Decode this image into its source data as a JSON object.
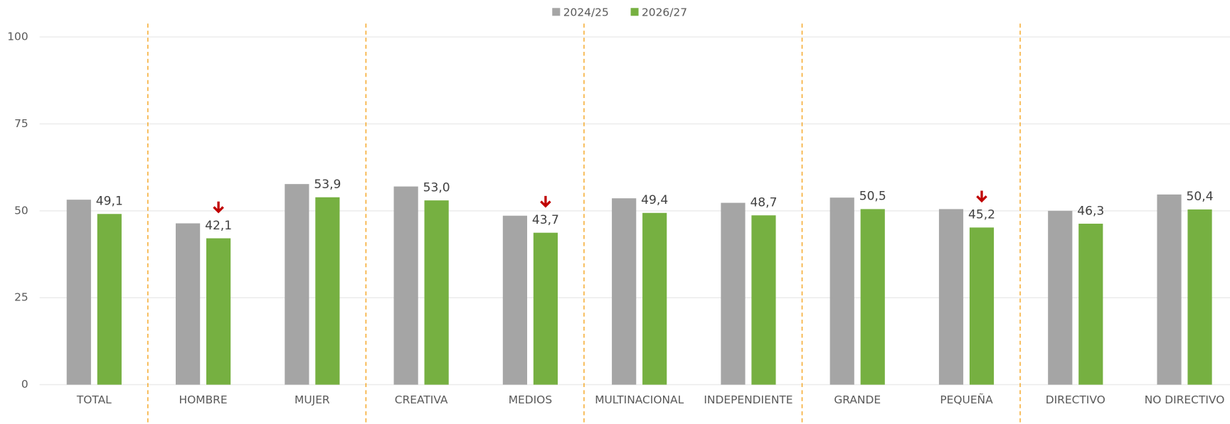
{
  "chart_data": {
    "type": "bar",
    "categories": [
      "TOTAL",
      "HOMBRE",
      "MUJER",
      "CREATIVA",
      "MEDIOS",
      "MULTINACIONAL",
      "INDEPENDIENTE",
      "GRANDE",
      "PEQUEÑA",
      "DIRECTIVO",
      "NO DIRECTIVO"
    ],
    "series": [
      {
        "name": "2024/25",
        "color": "#a5a5a5",
        "values": [
          53.2,
          46.4,
          57.7,
          57.0,
          48.6,
          53.6,
          52.3,
          53.8,
          50.5,
          50.0,
          54.7
        ]
      },
      {
        "name": "2026/27",
        "color": "#76b041",
        "values": [
          49.1,
          42.1,
          53.9,
          53.0,
          43.7,
          49.4,
          48.7,
          50.5,
          45.2,
          46.3,
          50.4
        ],
        "value_labels": [
          "49,1",
          "42,1",
          "53,9",
          "53,0",
          "43,7",
          "49,4",
          "48,7",
          "50,5",
          "45,2",
          "46,3",
          "50,4"
        ]
      }
    ],
    "ylim": [
      0,
      100
    ],
    "yticks": [
      0,
      25,
      50,
      75,
      100
    ],
    "grid": true,
    "legend": "top"
  }
}
